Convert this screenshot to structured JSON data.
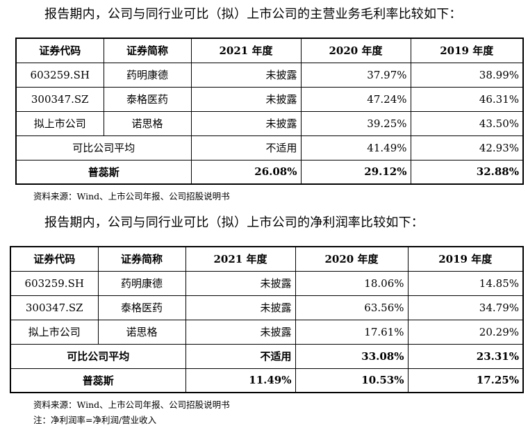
{
  "section1": {
    "heading": "报告期内，公司与同行业可比（拟）上市公司的主营业务毛利率比较如下：",
    "headers": [
      "证券代码",
      "证券简称",
      "2021 年度",
      "2020 年度",
      "2019 年度"
    ],
    "rows": [
      {
        "code": "603259.SH",
        "name": "药明康德",
        "y2021": "未披露",
        "y2020": "37.97%",
        "y2019": "38.99%"
      },
      {
        "code": "300347.SZ",
        "name": "泰格医药",
        "y2021": "未披露",
        "y2020": "47.24%",
        "y2019": "46.31%"
      },
      {
        "code": "拟上市公司",
        "name": "诺思格",
        "y2021": "未披露",
        "y2020": "39.25%",
        "y2019": "43.50%"
      }
    ],
    "average": {
      "label": "可比公司平均",
      "y2021": "不适用",
      "y2020": "41.49%",
      "y2019": "42.93%"
    },
    "company": {
      "label": "普蕊斯",
      "y2021": "26.08%",
      "y2020": "29.12%",
      "y2019": "32.88%"
    },
    "source": "资料来源：Wind、上市公司年报、公司招股说明书"
  },
  "section2": {
    "heading": "报告期内，公司与同行业可比（拟）上市公司的净利润率比较如下：",
    "headers": [
      "证券代码",
      "证券简称",
      "2021 年度",
      "2020 年度",
      "2019 年度"
    ],
    "rows": [
      {
        "code": "603259.SH",
        "name": "药明康德",
        "y2021": "未披露",
        "y2020": "18.06%",
        "y2019": "14.85%"
      },
      {
        "code": "300347.SZ",
        "name": "泰格医药",
        "y2021": "未披露",
        "y2020": "63.56%",
        "y2019": "34.79%"
      },
      {
        "code": "拟上市公司",
        "name": "诺思格",
        "y2021": "未披露",
        "y2020": "17.61%",
        "y2019": "20.29%"
      }
    ],
    "average": {
      "label": "可比公司平均",
      "y2021": "不适用",
      "y2020": "33.08%",
      "y2019": "23.31%"
    },
    "company": {
      "label": "普蕊斯",
      "y2021": "11.49%",
      "y2020": "10.53%",
      "y2019": "17.25%"
    },
    "source": "资料来源：Wind、上市公司年报、公司招股说明书",
    "note": "注：净利润率=净利润/营业收入"
  }
}
